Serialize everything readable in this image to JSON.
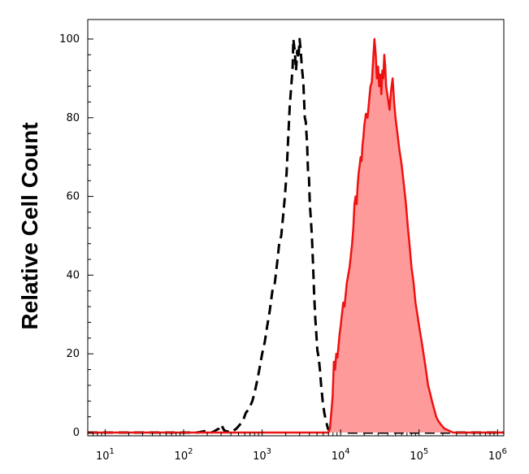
{
  "chart_data": {
    "type": "area",
    "title": "",
    "xlabel": "",
    "ylabel": "Relative Cell Count",
    "xscale": "log",
    "xlim": [
      6,
      1200000
    ],
    "ylim": [
      0,
      100
    ],
    "grid": false,
    "legend": "none",
    "y_ticks": [
      "0",
      "20",
      "40",
      "60",
      "80",
      "100"
    ],
    "x_ticks": [
      {
        "base": "10",
        "exp": "1",
        "value": 10
      },
      {
        "base": "10",
        "exp": "2",
        "value": 100
      },
      {
        "base": "10",
        "exp": "3",
        "value": 1000
      },
      {
        "base": "10",
        "exp": "4",
        "value": 10000
      },
      {
        "base": "10",
        "exp": "5",
        "value": 100000
      },
      {
        "base": "10",
        "exp": "6",
        "value": 1000000
      }
    ],
    "series": [
      {
        "style": "dashed",
        "color": "#000000",
        "fill": "none",
        "points": [
          [
            6,
            0
          ],
          [
            150,
            0
          ],
          [
            200,
            0.5
          ],
          [
            230,
            0
          ],
          [
            280,
            1
          ],
          [
            300,
            2
          ],
          [
            330,
            0.5
          ],
          [
            400,
            0
          ],
          [
            470,
            1
          ],
          [
            520,
            2
          ],
          [
            570,
            3
          ],
          [
            620,
            5
          ],
          [
            680,
            6
          ],
          [
            750,
            8
          ],
          [
            800,
            10
          ],
          [
            860,
            13
          ],
          [
            920,
            16
          ],
          [
            1000,
            20
          ],
          [
            1080,
            23
          ],
          [
            1160,
            27
          ],
          [
            1250,
            31
          ],
          [
            1350,
            36
          ],
          [
            1450,
            38
          ],
          [
            1550,
            43
          ],
          [
            1650,
            48
          ],
          [
            1750,
            50
          ],
          [
            1850,
            55
          ],
          [
            1950,
            60
          ],
          [
            2050,
            66
          ],
          [
            2150,
            75
          ],
          [
            2250,
            83
          ],
          [
            2350,
            88
          ],
          [
            2450,
            93
          ],
          [
            2500,
            100
          ],
          [
            2600,
            97
          ],
          [
            2700,
            92
          ],
          [
            2800,
            97
          ],
          [
            2900,
            95
          ],
          [
            3000,
            100
          ],
          [
            3100,
            97
          ],
          [
            3200,
            93
          ],
          [
            3350,
            89
          ],
          [
            3500,
            80
          ],
          [
            3600,
            79
          ],
          [
            3750,
            73
          ],
          [
            3850,
            66
          ],
          [
            3950,
            65
          ],
          [
            4050,
            58
          ],
          [
            4150,
            55
          ],
          [
            4300,
            50
          ],
          [
            4450,
            43
          ],
          [
            4600,
            35
          ],
          [
            4750,
            29
          ],
          [
            4900,
            25
          ],
          [
            5050,
            21
          ],
          [
            5250,
            19
          ],
          [
            5450,
            16
          ],
          [
            5650,
            12
          ],
          [
            5900,
            8
          ],
          [
            6200,
            5
          ],
          [
            6500,
            3
          ],
          [
            6900,
            1
          ],
          [
            7500,
            0
          ],
          [
            8500,
            0
          ],
          [
            9500,
            1
          ],
          [
            10500,
            0
          ],
          [
            12000,
            0
          ],
          [
            20000,
            0
          ],
          [
            40000,
            0
          ],
          [
            80000,
            0
          ],
          [
            1200000,
            0
          ]
        ]
      },
      {
        "style": "solid",
        "color": "#ee1111",
        "fill": "#ff9a9a",
        "points": [
          [
            6,
            0
          ],
          [
            4000,
            0
          ],
          [
            7000,
            0
          ],
          [
            7300,
            1
          ],
          [
            7600,
            5
          ],
          [
            7900,
            9
          ],
          [
            8200,
            18
          ],
          [
            8500,
            16
          ],
          [
            8800,
            20
          ],
          [
            9100,
            19
          ],
          [
            9400,
            22
          ],
          [
            9700,
            25
          ],
          [
            10000,
            27
          ],
          [
            10400,
            30
          ],
          [
            10800,
            33
          ],
          [
            11200,
            32
          ],
          [
            11600,
            35
          ],
          [
            12000,
            38
          ],
          [
            12500,
            40
          ],
          [
            13000,
            42
          ],
          [
            13500,
            45
          ],
          [
            14000,
            48
          ],
          [
            14500,
            52
          ],
          [
            15000,
            58
          ],
          [
            15500,
            60
          ],
          [
            16000,
            58
          ],
          [
            16500,
            63
          ],
          [
            17000,
            66
          ],
          [
            17500,
            68
          ],
          [
            18000,
            70
          ],
          [
            18500,
            69
          ],
          [
            19000,
            73
          ],
          [
            19500,
            75
          ],
          [
            20000,
            78
          ],
          [
            21000,
            81
          ],
          [
            22000,
            80
          ],
          [
            23000,
            84
          ],
          [
            24000,
            88
          ],
          [
            25000,
            89
          ],
          [
            26000,
            95
          ],
          [
            27000,
            100
          ],
          [
            28000,
            96
          ],
          [
            29000,
            90
          ],
          [
            30000,
            93
          ],
          [
            31000,
            88
          ],
          [
            32000,
            91
          ],
          [
            33000,
            86
          ],
          [
            34000,
            92
          ],
          [
            35000,
            90
          ],
          [
            36000,
            96
          ],
          [
            37000,
            93
          ],
          [
            38000,
            88
          ],
          [
            40000,
            85
          ],
          [
            42000,
            82
          ],
          [
            44000,
            87
          ],
          [
            46000,
            90
          ],
          [
            48000,
            84
          ],
          [
            50000,
            80
          ],
          [
            53000,
            76
          ],
          [
            56000,
            72
          ],
          [
            60000,
            68
          ],
          [
            64000,
            63
          ],
          [
            68000,
            58
          ],
          [
            72000,
            52
          ],
          [
            76000,
            47
          ],
          [
            80000,
            42
          ],
          [
            85000,
            38
          ],
          [
            90000,
            33
          ],
          [
            95000,
            30
          ],
          [
            100000,
            27
          ],
          [
            106000,
            24
          ],
          [
            112000,
            21
          ],
          [
            118000,
            18
          ],
          [
            124000,
            15
          ],
          [
            130000,
            12
          ],
          [
            138000,
            10
          ],
          [
            146000,
            8
          ],
          [
            155000,
            6
          ],
          [
            165000,
            4
          ],
          [
            175000,
            3
          ],
          [
            190000,
            2
          ],
          [
            210000,
            1
          ],
          [
            240000,
            0.5
          ],
          [
            270000,
            0
          ],
          [
            1200000,
            0
          ]
        ]
      }
    ]
  }
}
